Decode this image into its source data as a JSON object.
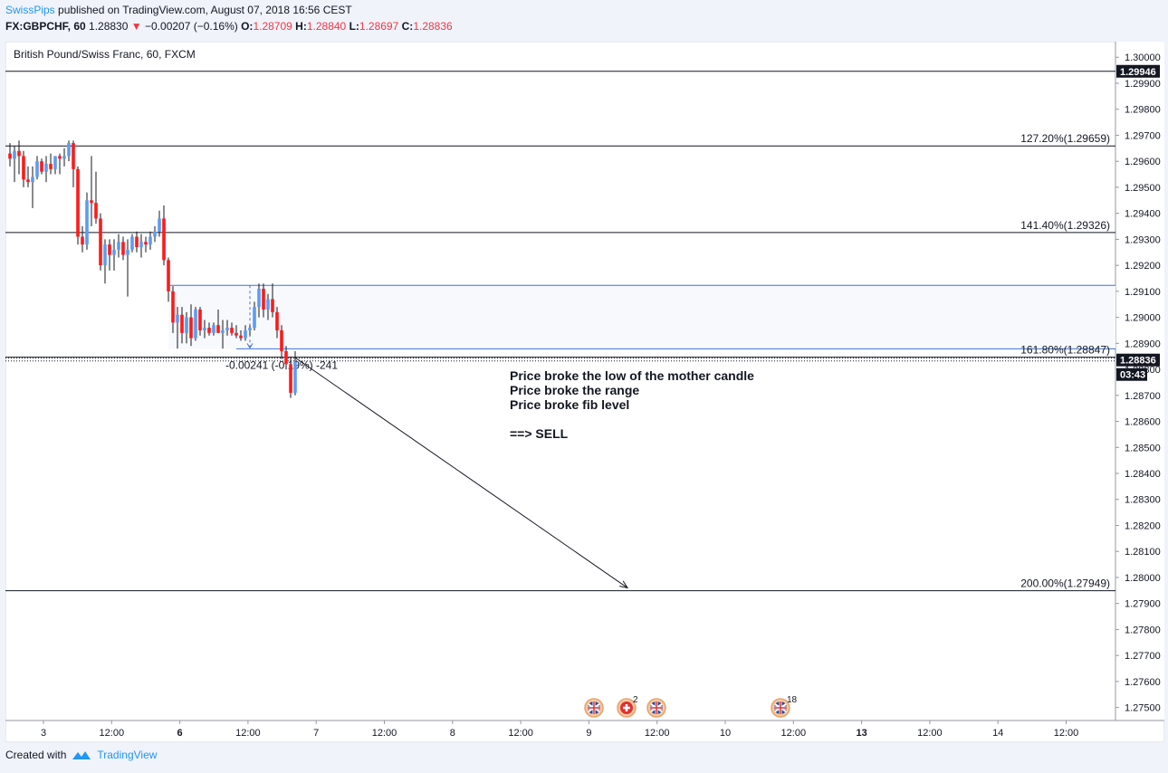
{
  "header": {
    "author": "SwissPips",
    "published_text": "published on TradingView.com, August 07, 2018 16:56 CEST",
    "symbol_line_prefix": "FX:GBPCHF, 60",
    "last": "1.28830",
    "change": "−0.00207 (−0.16%)",
    "open_label": "O:",
    "open": "1.28709",
    "high_label": "H:",
    "high": "1.28840",
    "low_label": "L:",
    "low": "1.28697",
    "close_label": "C:",
    "close": "1.28836"
  },
  "chart_title": "British Pound/Swiss Franc, 60, FXCM",
  "footer": {
    "created_with": "Created with",
    "brand": "TradingView"
  },
  "colors": {
    "up": "#5b9cf6",
    "down": "#ff1a1a",
    "grid": "#e0e3eb",
    "price_tag": "#131722",
    "range_box": "#f8f9fc",
    "range_line": "#3f72d6"
  },
  "chart_data": {
    "type": "candlestick",
    "title": "British Pound/Swiss Franc, 60, FXCM",
    "y_range": [
      1.2745,
      1.3006
    ],
    "y_ticks": [
      "1.30000",
      "1.29900",
      "1.29800",
      "1.29700",
      "1.29600",
      "1.29500",
      "1.29400",
      "1.29300",
      "1.29200",
      "1.29100",
      "1.29000",
      "1.28900",
      "1.28800",
      "1.28700",
      "1.28600",
      "1.28500",
      "1.28400",
      "1.28300",
      "1.28200",
      "1.28100",
      "1.28000",
      "1.27900",
      "1.27800",
      "1.27700",
      "1.27600",
      "1.27500"
    ],
    "x_ticks": [
      "3",
      "12:00",
      "6",
      "12:00",
      "7",
      "12:00",
      "8",
      "12:00",
      "9",
      "12:00",
      "10",
      "12:00",
      "13",
      "12:00",
      "14",
      "12:00"
    ],
    "bold_x_ticks": [
      "6",
      "13"
    ],
    "price_tags": [
      {
        "label": "1.29946",
        "value": 1.29946
      },
      {
        "label": "1.28836",
        "value": 1.28836,
        "countdown": "03:43"
      }
    ],
    "fib_levels": [
      {
        "label": "127.20%(1.29659)",
        "value": 1.29659
      },
      {
        "label": "141.40%(1.29326)",
        "value": 1.29326
      },
      {
        "label": "161.80%(1.28847)",
        "value": 1.28847
      },
      {
        "label": "200.00%(1.27949)",
        "value": 1.27949
      }
    ],
    "horizontal_line": 1.29946,
    "range_box": {
      "top": 1.29123,
      "bottom": 1.28879
    },
    "measure_label": "-0.00241 (-0.19%) -241",
    "annotation_lines": [
      "Price broke the low of the mother candle",
      "Price broke the range",
      "Price broke fib level",
      "",
      "==> SELL"
    ],
    "arrow": {
      "from": {
        "bar": 63,
        "price": 1.28845
      },
      "to": {
        "bar": 115,
        "price": 1.2796
      }
    },
    "events": [
      {
        "bar": 132,
        "icon": "uk-flag-icon",
        "count": ""
      },
      {
        "bar": 141,
        "icon": "swiss-flag-icon",
        "count": "2"
      },
      {
        "bar": 145,
        "icon": "uk-flag-icon",
        "count": ""
      },
      {
        "bar": 164,
        "icon": "uk-flag-icon",
        "count": "18"
      }
    ],
    "candles": [
      [
        1.2963,
        1.2967,
        1.2958,
        1.2961
      ],
      [
        1.2961,
        1.2966,
        1.2952,
        1.2964
      ],
      [
        1.2964,
        1.2968,
        1.2955,
        1.2962
      ],
      [
        1.2962,
        1.2964,
        1.295,
        1.2953
      ],
      [
        1.2953,
        1.2958,
        1.295,
        1.2952
      ],
      [
        1.2952,
        1.2958,
        1.2942,
        1.2954
      ],
      [
        1.2954,
        1.2962,
        1.2953,
        1.296
      ],
      [
        1.296,
        1.2961,
        1.2955,
        1.2956
      ],
      [
        1.2956,
        1.2962,
        1.2952,
        1.2959
      ],
      [
        1.2959,
        1.2963,
        1.2955,
        1.2957
      ],
      [
        1.2957,
        1.2962,
        1.2955,
        1.2962
      ],
      [
        1.2962,
        1.2963,
        1.2955,
        1.2961
      ],
      [
        1.2961,
        1.2965,
        1.2958,
        1.2962
      ],
      [
        1.2962,
        1.2968,
        1.296,
        1.2967
      ],
      [
        1.2967,
        1.2968,
        1.295,
        1.2957
      ],
      [
        1.2957,
        1.2958,
        1.2928,
        1.2931
      ],
      [
        1.2931,
        1.2935,
        1.2925,
        1.2928
      ],
      [
        1.2928,
        1.2948,
        1.2926,
        1.2945
      ],
      [
        1.2945,
        1.2962,
        1.2935,
        1.2944
      ],
      [
        1.2944,
        1.2956,
        1.2936,
        1.2938
      ],
      [
        1.2938,
        1.294,
        1.2918,
        1.292
      ],
      [
        1.292,
        1.293,
        1.2913,
        1.2928
      ],
      [
        1.2928,
        1.293,
        1.2918,
        1.2924
      ],
      [
        1.2924,
        1.293,
        1.2918,
        1.2926
      ],
      [
        1.2926,
        1.2932,
        1.2923,
        1.2929
      ],
      [
        1.2929,
        1.2931,
        1.2922,
        1.2924
      ],
      [
        1.2924,
        1.293,
        1.2908,
        1.2926
      ],
      [
        1.2926,
        1.2932,
        1.2925,
        1.2931
      ],
      [
        1.2931,
        1.2933,
        1.2925,
        1.2927
      ],
      [
        1.2927,
        1.2932,
        1.2923,
        1.2929
      ],
      [
        1.2929,
        1.2931,
        1.2925,
        1.2928
      ],
      [
        1.2928,
        1.2933,
        1.2926,
        1.2931
      ],
      [
        1.2931,
        1.2935,
        1.2929,
        1.2933
      ],
      [
        1.2933,
        1.2941,
        1.2931,
        1.2938
      ],
      [
        1.2938,
        1.2943,
        1.292,
        1.2922
      ],
      [
        1.2922,
        1.2923,
        1.2906,
        1.291
      ],
      [
        1.291,
        1.2912,
        1.2894,
        1.2898
      ],
      [
        1.2898,
        1.2904,
        1.2888,
        1.2901
      ],
      [
        1.2901,
        1.2904,
        1.289,
        1.2894
      ],
      [
        1.2894,
        1.2902,
        1.289,
        1.29
      ],
      [
        1.29,
        1.2905,
        1.2889,
        1.2892
      ],
      [
        1.2892,
        1.2904,
        1.2891,
        1.2903
      ],
      [
        1.2903,
        1.2904,
        1.2893,
        1.2895
      ],
      [
        1.2895,
        1.2899,
        1.2892,
        1.2896
      ],
      [
        1.2896,
        1.2898,
        1.2893,
        1.2894
      ],
      [
        1.2894,
        1.2898,
        1.2893,
        1.2897
      ],
      [
        1.2897,
        1.2903,
        1.2894,
        1.2894
      ],
      [
        1.2894,
        1.2899,
        1.2888,
        1.2895
      ],
      [
        1.2895,
        1.2899,
        1.2893,
        1.2896
      ],
      [
        1.2896,
        1.2898,
        1.2893,
        1.2894
      ],
      [
        1.2894,
        1.2897,
        1.2892,
        1.2893
      ],
      [
        1.2893,
        1.2895,
        1.2891,
        1.2892
      ],
      [
        1.2892,
        1.2897,
        1.2891,
        1.2895
      ],
      [
        1.2895,
        1.2897,
        1.2893,
        1.2896
      ],
      [
        1.2896,
        1.2906,
        1.2895,
        1.2904
      ],
      [
        1.2904,
        1.2913,
        1.29,
        1.2911
      ],
      [
        1.2911,
        1.2913,
        1.29,
        1.2903
      ],
      [
        1.2903,
        1.2909,
        1.2899,
        1.2907
      ],
      [
        1.2907,
        1.2913,
        1.29,
        1.2902
      ],
      [
        1.2902,
        1.2904,
        1.2892,
        1.2895
      ],
      [
        1.2895,
        1.2897,
        1.2884,
        1.2887
      ],
      [
        1.2887,
        1.2889,
        1.288,
        1.2882
      ],
      [
        1.2882,
        1.2885,
        1.2869,
        1.2871
      ],
      [
        1.2871,
        1.2887,
        1.287,
        1.2883
      ]
    ]
  }
}
